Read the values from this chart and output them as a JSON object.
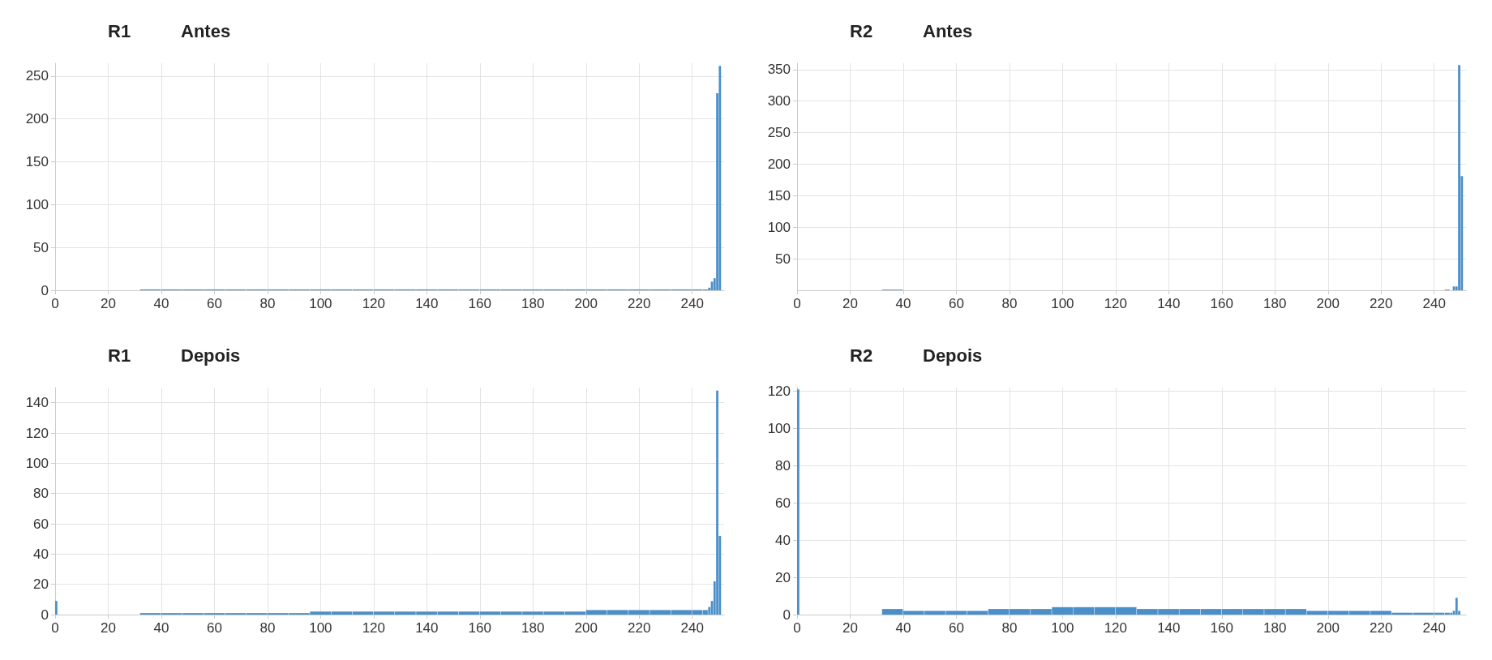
{
  "chart_data": [
    {
      "type": "histogram",
      "title": "R1",
      "subtitle": "Antes",
      "color": "#4a8fc9",
      "grid": true,
      "bins": [
        32,
        40,
        48,
        56,
        64,
        72,
        80,
        88,
        96,
        104,
        112,
        120,
        128,
        136,
        144,
        152,
        160,
        168,
        176,
        184,
        192,
        200,
        208,
        216,
        224,
        232,
        240,
        244,
        246,
        247,
        248,
        249,
        250,
        251
      ],
      "values": [
        1,
        1,
        1,
        1,
        1,
        1,
        1,
        1,
        1,
        1,
        1,
        1,
        1,
        1,
        1,
        1,
        1,
        1,
        1,
        1,
        1,
        1,
        1,
        1,
        1,
        1,
        1,
        1,
        3,
        10,
        14,
        230,
        262
      ],
      "xlim": [
        0,
        252
      ],
      "xticks": [
        0,
        20,
        40,
        60,
        80,
        100,
        120,
        140,
        160,
        180,
        200,
        220,
        240
      ],
      "ylim": [
        0,
        265
      ],
      "yticks": [
        0,
        50,
        100,
        150,
        200,
        250
      ]
    },
    {
      "type": "histogram",
      "title": "R2",
      "subtitle": "Antes",
      "color": "#4a8fc9",
      "grid": true,
      "bins": [
        32,
        40,
        244,
        246,
        247,
        248,
        249,
        250,
        251
      ],
      "values": [
        1,
        0,
        1,
        0,
        6,
        6,
        357,
        181
      ],
      "xlim": [
        0,
        252
      ],
      "xticks": [
        0,
        20,
        40,
        60,
        80,
        100,
        120,
        140,
        160,
        180,
        200,
        220,
        240
      ],
      "ylim": [
        0,
        360
      ],
      "yticks": [
        50,
        100,
        150,
        200,
        250,
        300,
        350
      ]
    },
    {
      "type": "histogram",
      "title": "R1",
      "subtitle": "Depois",
      "color": "#4a8fc9",
      "grid": true,
      "bins": [
        0,
        1,
        32,
        40,
        48,
        56,
        64,
        72,
        80,
        88,
        96,
        104,
        112,
        120,
        128,
        136,
        144,
        152,
        160,
        168,
        176,
        184,
        192,
        200,
        208,
        216,
        224,
        232,
        240,
        244,
        246,
        247,
        248,
        249,
        250,
        251
      ],
      "values": [
        9,
        0,
        1,
        1,
        1,
        1,
        1,
        1,
        1,
        1,
        2,
        2,
        2,
        2,
        2,
        2,
        2,
        2,
        2,
        2,
        2,
        2,
        2,
        3,
        3,
        3,
        3,
        3,
        3,
        3,
        5,
        9,
        22,
        148,
        52
      ],
      "xlim": [
        0,
        252
      ],
      "xticks": [
        0,
        20,
        40,
        60,
        80,
        100,
        120,
        140,
        160,
        180,
        200,
        220,
        240
      ],
      "ylim": [
        0,
        150
      ],
      "yticks": [
        0,
        20,
        40,
        60,
        80,
        100,
        120,
        140
      ]
    },
    {
      "type": "histogram",
      "title": "R2",
      "subtitle": "Depois",
      "color": "#4a8fc9",
      "grid": true,
      "bins": [
        0,
        1,
        32,
        40,
        48,
        56,
        64,
        72,
        80,
        88,
        96,
        104,
        112,
        120,
        128,
        136,
        144,
        152,
        160,
        168,
        176,
        184,
        192,
        200,
        208,
        216,
        224,
        232,
        240,
        244,
        246,
        247,
        248,
        249,
        250
      ],
      "values": [
        121,
        0,
        3,
        2,
        2,
        2,
        2,
        3,
        3,
        3,
        4,
        4,
        4,
        4,
        3,
        3,
        3,
        3,
        3,
        3,
        3,
        3,
        2,
        2,
        2,
        2,
        1,
        1,
        1,
        1,
        1,
        2,
        9,
        2
      ],
      "xlim": [
        0,
        252
      ],
      "xticks": [
        0,
        20,
        40,
        60,
        80,
        100,
        120,
        140,
        160,
        180,
        200,
        220,
        240
      ],
      "ylim": [
        0,
        122
      ],
      "yticks": [
        0,
        20,
        40,
        60,
        80,
        100,
        120
      ]
    }
  ]
}
